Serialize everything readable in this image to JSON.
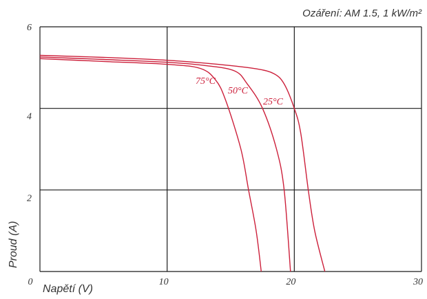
{
  "chart_data": {
    "type": "line",
    "annotation": "Ozáření: AM 1.5, 1 kW/m²",
    "xlabel": "Napětí (V)",
    "ylabel": "Proud (A)",
    "xlim": [
      0,
      30
    ],
    "ylim": [
      0,
      6
    ],
    "xticks": [
      0,
      10,
      20,
      30
    ],
    "yticks": [
      0,
      2,
      4,
      6
    ],
    "xtick_labels": [
      "0",
      "10",
      "20",
      "30"
    ],
    "ytick_labels": [
      "2",
      "4",
      "6"
    ],
    "grid": true,
    "line_color": "#cc1f3a",
    "series": [
      {
        "name": "25°C",
        "points": [
          [
            0,
            5.3
          ],
          [
            5,
            5.25
          ],
          [
            10,
            5.18
          ],
          [
            14,
            5.08
          ],
          [
            17,
            4.97
          ],
          [
            18.4,
            4.85
          ],
          [
            19.2,
            4.6
          ],
          [
            20,
            4.0
          ],
          [
            20.5,
            3.4
          ],
          [
            21.1,
            2.0
          ],
          [
            21.6,
            1.0
          ],
          [
            22.4,
            0
          ]
        ]
      },
      {
        "name": "50°C",
        "points": [
          [
            0,
            5.26
          ],
          [
            5,
            5.2
          ],
          [
            10,
            5.13
          ],
          [
            13,
            5.05
          ],
          [
            15.3,
            4.92
          ],
          [
            16.3,
            4.6
          ],
          [
            17.5,
            4.0
          ],
          [
            18.6,
            3.0
          ],
          [
            19.2,
            2.0
          ],
          [
            19.7,
            0
          ]
        ]
      },
      {
        "name": "75°C",
        "points": [
          [
            0,
            5.22
          ],
          [
            5,
            5.15
          ],
          [
            10,
            5.08
          ],
          [
            12.6,
            4.98
          ],
          [
            13.8,
            4.7
          ],
          [
            14.6,
            4.2
          ],
          [
            15.8,
            3.0
          ],
          [
            16.4,
            2.0
          ],
          [
            17.0,
            1.0
          ],
          [
            17.4,
            0
          ]
        ]
      }
    ]
  }
}
